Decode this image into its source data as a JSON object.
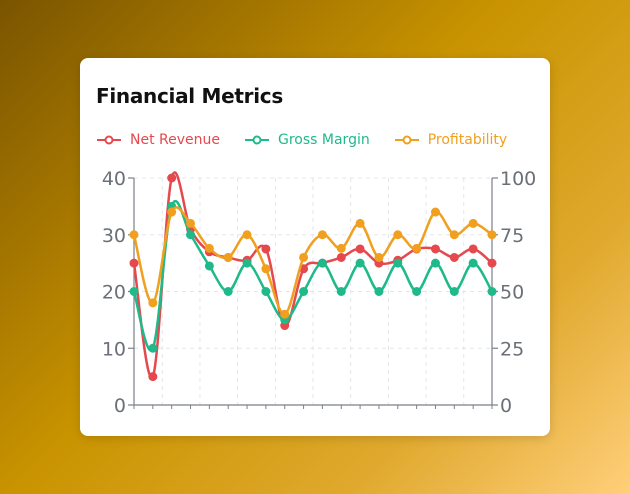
{
  "chart_data": {
    "type": "line",
    "title": "Financial Metrics",
    "x": [
      0,
      1,
      2,
      3,
      4,
      5,
      6,
      7,
      8,
      9,
      10,
      11,
      12,
      13,
      14,
      15,
      16,
      17,
      18,
      19
    ],
    "y_left": {
      "ylim": [
        0,
        40
      ],
      "ticks": [
        "0",
        "10",
        "20",
        "30",
        "40"
      ]
    },
    "y_right": {
      "ylim": [
        0,
        100
      ],
      "ticks": [
        "0",
        "25",
        "50",
        "75",
        "100"
      ]
    },
    "legend_position": "top-left",
    "grid": true,
    "series": [
      {
        "name": "Net Revenue",
        "color": "#e5484d",
        "axis": "left",
        "values": [
          25,
          5,
          40,
          31,
          27,
          26,
          25.5,
          27.5,
          14,
          24,
          25,
          26,
          27.5,
          25,
          25.5,
          27.5,
          27.5,
          26,
          27.5,
          25
        ]
      },
      {
        "name": "Gross Margin",
        "color": "#1fb98a",
        "axis": "left",
        "values": [
          20,
          10,
          35,
          30,
          24.5,
          20,
          25,
          20,
          15,
          20,
          25,
          20,
          25,
          20,
          25,
          20,
          25,
          20,
          25,
          20
        ]
      },
      {
        "name": "Profitability",
        "color": "#f0a01e",
        "axis": "right",
        "values": [
          75,
          45,
          85,
          80,
          69,
          65,
          75,
          60,
          40,
          65,
          75,
          69,
          80,
          65,
          75,
          69,
          85,
          75,
          80,
          75
        ]
      }
    ]
  }
}
